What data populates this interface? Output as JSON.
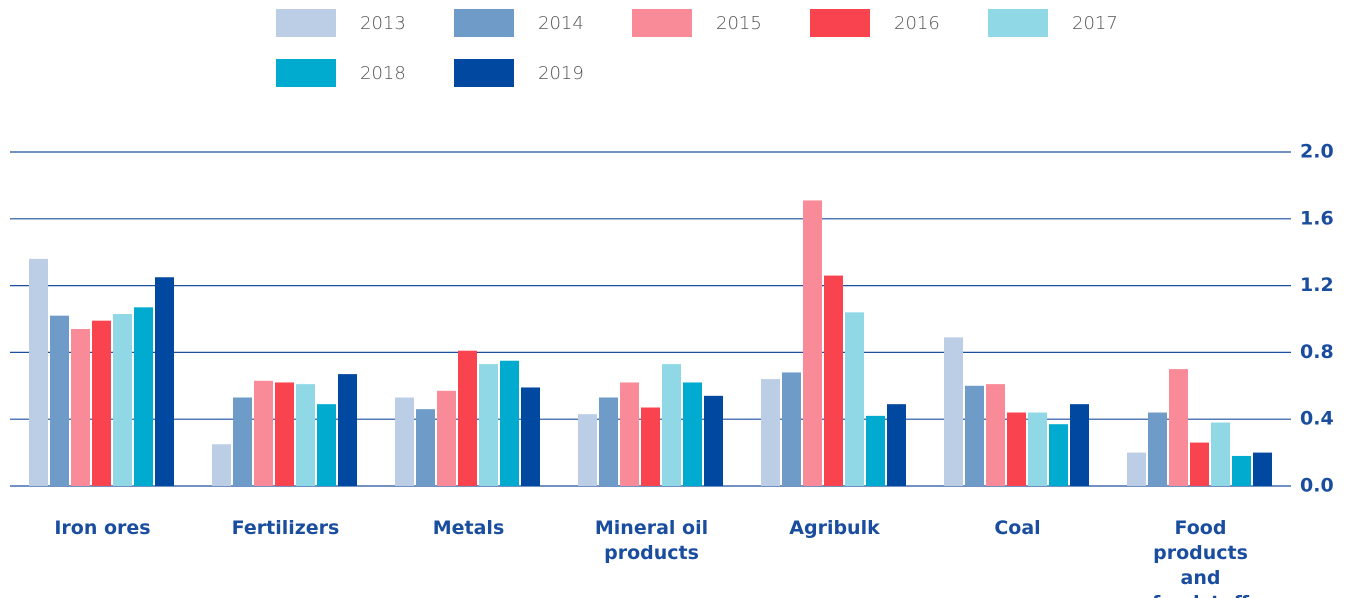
{
  "chart_data": {
    "type": "bar",
    "categories": [
      "Iron ores",
      "Fertilizers",
      "Metals",
      "Mineral oil products",
      "Agribulk",
      "Coal",
      "Food products and feedstuff"
    ],
    "series": [
      {
        "name": "2013",
        "color": "#bccde6",
        "values": [
          1.36,
          0.25,
          0.53,
          0.43,
          0.64,
          0.89,
          0.2
        ]
      },
      {
        "name": "2014",
        "color": "#6f9bc8",
        "values": [
          1.02,
          0.53,
          0.46,
          0.53,
          0.68,
          0.6,
          0.44
        ]
      },
      {
        "name": "2015",
        "color": "#f98a98",
        "values": [
          0.94,
          0.63,
          0.57,
          0.62,
          1.71,
          0.61,
          0.7
        ]
      },
      {
        "name": "2016",
        "color": "#f9434f",
        "values": [
          0.99,
          0.62,
          0.81,
          0.47,
          1.26,
          0.44,
          0.26
        ]
      },
      {
        "name": "2017",
        "color": "#90d8e6",
        "values": [
          1.03,
          0.61,
          0.73,
          0.73,
          1.04,
          0.44,
          0.38
        ]
      },
      {
        "name": "2018",
        "color": "#00abcf",
        "values": [
          1.07,
          0.49,
          0.75,
          0.62,
          0.42,
          0.37,
          0.18
        ]
      },
      {
        "name": "2019",
        "color": "#0148a1",
        "values": [
          1.25,
          0.67,
          0.59,
          0.54,
          0.49,
          0.49,
          0.2
        ]
      }
    ],
    "ylim": [
      0,
      2.0
    ],
    "yticks": [
      {
        "value": 0,
        "label": "0.0"
      },
      0.4,
      0.8,
      1.2,
      1.6,
      {
        "value": 2,
        "label": "2.0"
      }
    ],
    "grid": true,
    "grid_color": "#1c4fa0",
    "y_axis_side": "right",
    "legend": "top"
  }
}
